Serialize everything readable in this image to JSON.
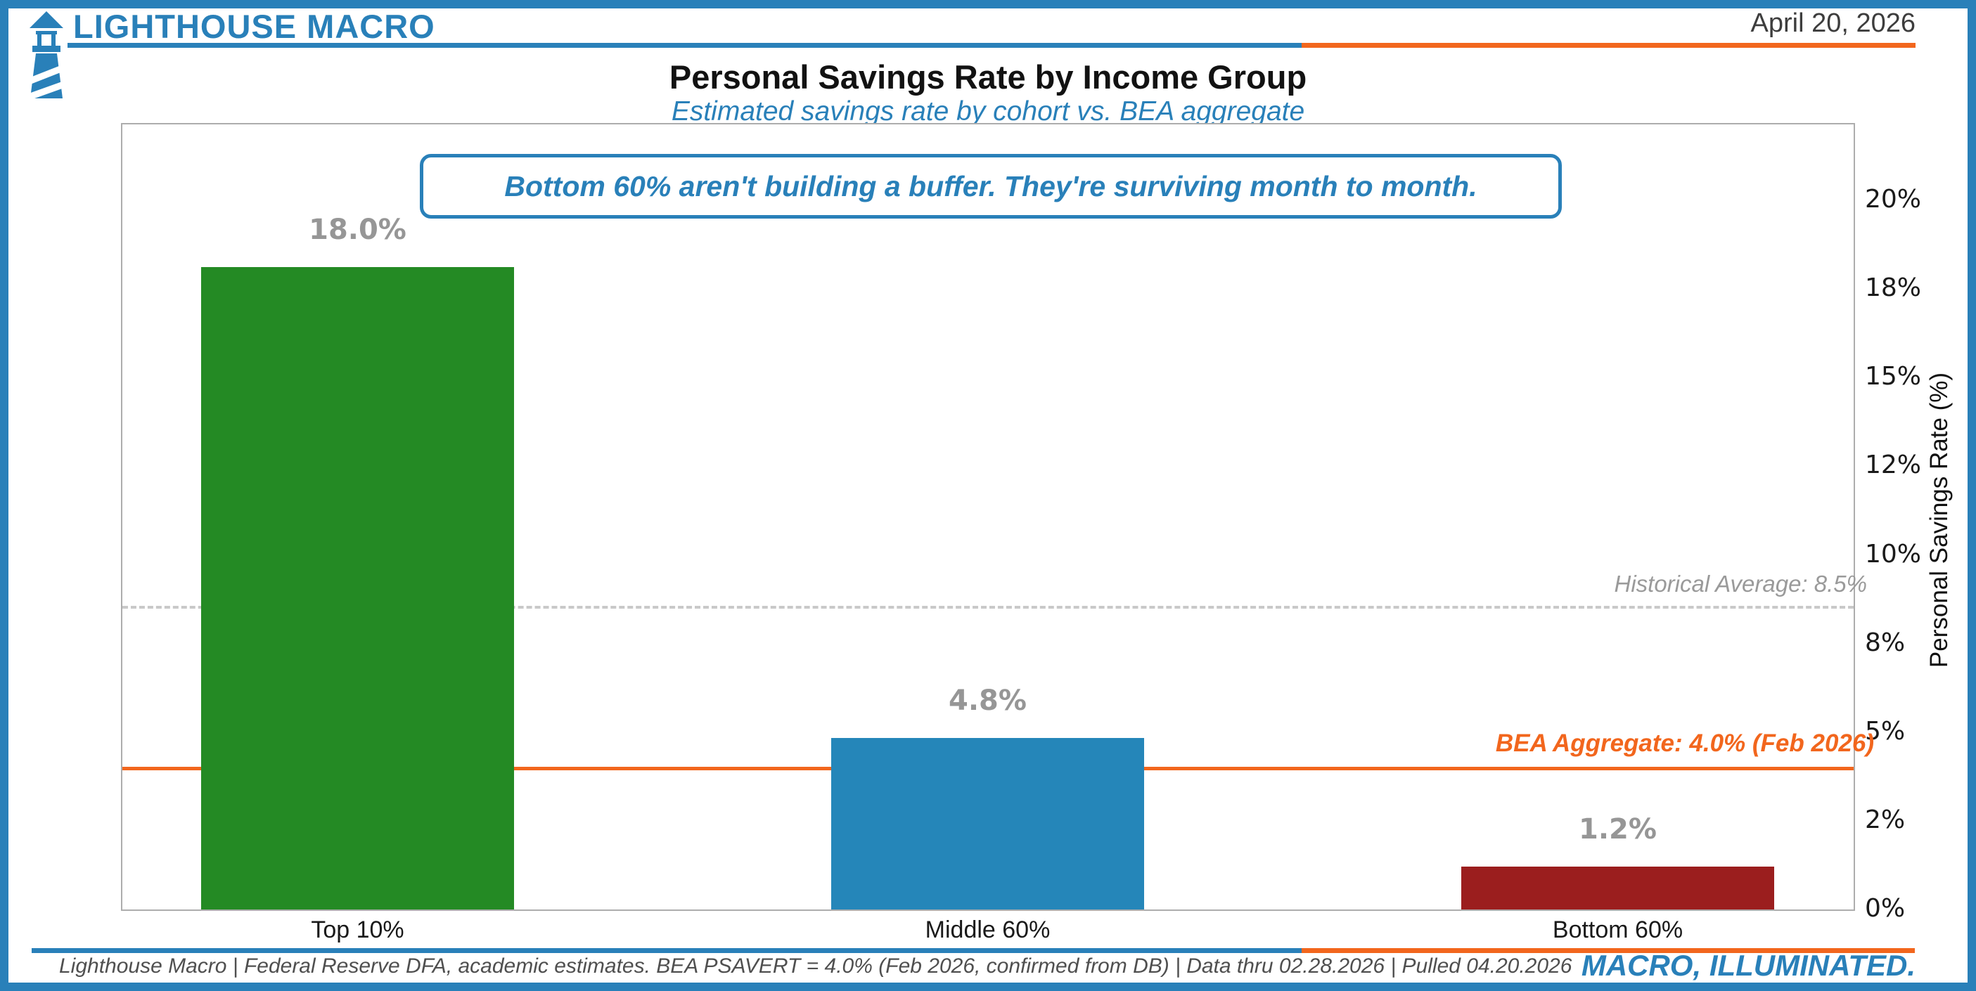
{
  "header": {
    "brand": "LIGHTHOUSE MACRO",
    "date": "April 20, 2026"
  },
  "title": "Personal Savings Rate by Income Group",
  "subtitle": "Estimated savings rate by cohort vs. BEA aggregate",
  "annotation": "Bottom 60% aren't building a buffer. They're surviving month to month.",
  "chart_data": {
    "type": "bar",
    "title": "Personal Savings Rate by Income Group",
    "subtitle": "Estimated savings rate by cohort vs. BEA aggregate",
    "categories": [
      "Top 10%",
      "Middle 60%",
      "Bottom 60%"
    ],
    "values": [
      18.0,
      4.8,
      1.2
    ],
    "value_labels": [
      "18.0%",
      "4.8%",
      "1.2%"
    ],
    "bar_colors": [
      "#248A24",
      "#2586B9",
      "#9B1E1E"
    ],
    "ylabel": "Personal Savings Rate (%)",
    "ylim": [
      0,
      22
    ],
    "ytick_labels": [
      "0%",
      "2%",
      "5%",
      "8%",
      "10%",
      "12%",
      "15%",
      "18%",
      "20%"
    ],
    "grid": false,
    "legend": false,
    "reference_lines": [
      {
        "name": "historical-average",
        "label": "Historical Average: 8.5%",
        "value": 8.5,
        "style": "dashed",
        "color": "#c9c9c9"
      },
      {
        "name": "bea-aggregate",
        "label": "BEA Aggregate: 4.0% (Feb 2026)",
        "value": 4.0,
        "style": "solid",
        "color": "#F2661D"
      }
    ]
  },
  "footer": {
    "source": "Lighthouse Macro | Federal Reserve DFA, academic estimates. BEA PSAVERT = 4.0% (Feb 2026, confirmed from DB) | Data thru 02.28.2026 | Pulled 04.20.2026",
    "tagline": "MACRO, ILLUMINATED."
  },
  "colors": {
    "brand_blue": "#2980B9",
    "brand_orange": "#F2661D"
  }
}
